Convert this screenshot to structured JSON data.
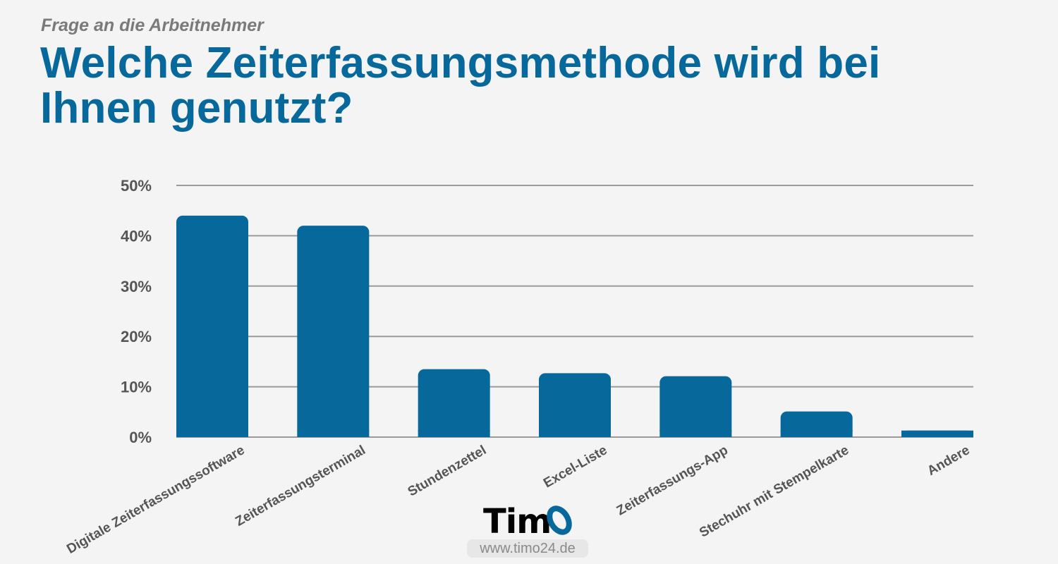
{
  "header": {
    "kicker": "Frage an die Arbeitnehmer",
    "title": "Welche Zeiterfassungsmethode wird bei Ihnen genutzt?"
  },
  "chart_data": {
    "type": "bar",
    "categories": [
      "Digitale Zeiterfassungssoftware",
      "Zeiterfassungsterminal",
      "Stundenzettel",
      "Excel-Liste",
      "Zeiterfassungs-App",
      "Stechuhr mit Stempelkarte",
      "Andere"
    ],
    "values": [
      44,
      42,
      13.5,
      12.7,
      12.1,
      5.1,
      1.3
    ],
    "ylim": [
      0,
      50
    ],
    "yticks": [
      0,
      10,
      20,
      30,
      40,
      50
    ],
    "ytick_labels": [
      "0%",
      "10%",
      "20%",
      "30%",
      "40%",
      "50%"
    ],
    "grid": true,
    "bar_color": "#06689b",
    "grid_color": "#9a9a9a",
    "title": "Welche Zeiterfassungsmethode wird bei Ihnen genutzt?",
    "xlabel": "",
    "ylabel": ""
  },
  "logo": {
    "text": "Tim",
    "accent_letter": "O",
    "accent_color": "#06689b"
  },
  "footer": {
    "website": "www.timo24.de"
  }
}
